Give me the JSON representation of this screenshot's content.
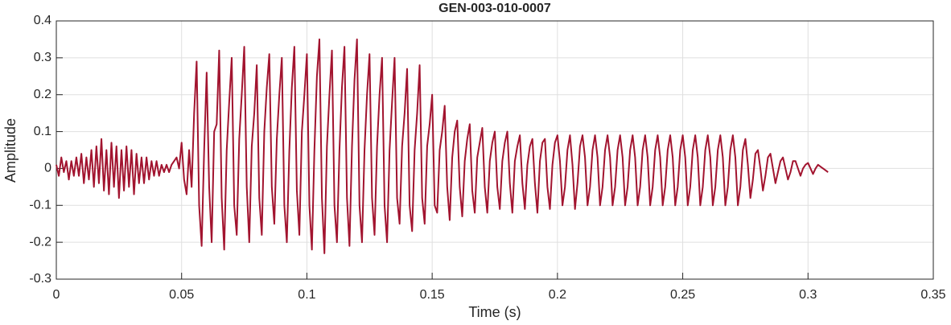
{
  "chart_data": {
    "type": "line",
    "title": "GEN-003-010-0007",
    "xlabel": "Time (s)",
    "ylabel": "Amplitude",
    "xlim": [
      0,
      0.35
    ],
    "ylim": [
      -0.3,
      0.4
    ],
    "xticks": [
      0,
      0.05,
      0.1,
      0.15,
      0.2,
      0.25,
      0.3,
      0.35
    ],
    "yticks": [
      -0.3,
      -0.2,
      -0.1,
      0,
      0.1,
      0.2,
      0.3,
      0.4
    ],
    "grid": true,
    "x": [
      0,
      0.001,
      0.002,
      0.003,
      0.004,
      0.005,
      0.006,
      0.007,
      0.008,
      0.009,
      0.01,
      0.011,
      0.012,
      0.013,
      0.014,
      0.015,
      0.016,
      0.017,
      0.018,
      0.019,
      0.02,
      0.021,
      0.022,
      0.023,
      0.024,
      0.025,
      0.026,
      0.027,
      0.028,
      0.029,
      0.03,
      0.031,
      0.032,
      0.033,
      0.034,
      0.035,
      0.036,
      0.037,
      0.038,
      0.039,
      0.04,
      0.041,
      0.042,
      0.043,
      0.044,
      0.045,
      0.046,
      0.047,
      0.048,
      0.049,
      0.05,
      0.051,
      0.052,
      0.053,
      0.054,
      0.055,
      0.056,
      0.057,
      0.058,
      0.059,
      0.06,
      0.061,
      0.062,
      0.063,
      0.064,
      0.065,
      0.066,
      0.067,
      0.068,
      0.069,
      0.07,
      0.071,
      0.072,
      0.073,
      0.074,
      0.075,
      0.076,
      0.077,
      0.078,
      0.079,
      0.08,
      0.081,
      0.082,
      0.083,
      0.084,
      0.085,
      0.086,
      0.087,
      0.088,
      0.089,
      0.09,
      0.091,
      0.092,
      0.093,
      0.094,
      0.095,
      0.096,
      0.097,
      0.098,
      0.099,
      0.1,
      0.101,
      0.102,
      0.103,
      0.104,
      0.105,
      0.106,
      0.107,
      0.108,
      0.109,
      0.11,
      0.111,
      0.112,
      0.113,
      0.114,
      0.115,
      0.116,
      0.117,
      0.118,
      0.119,
      0.12,
      0.121,
      0.122,
      0.123,
      0.124,
      0.125,
      0.126,
      0.127,
      0.128,
      0.129,
      0.13,
      0.131,
      0.132,
      0.133,
      0.134,
      0.135,
      0.136,
      0.137,
      0.138,
      0.139,
      0.14,
      0.141,
      0.142,
      0.143,
      0.144,
      0.145,
      0.146,
      0.147,
      0.148,
      0.149,
      0.15,
      0.151,
      0.152,
      0.153,
      0.154,
      0.155,
      0.156,
      0.157,
      0.158,
      0.159,
      0.16,
      0.161,
      0.162,
      0.163,
      0.164,
      0.165,
      0.166,
      0.167,
      0.168,
      0.169,
      0.17,
      0.171,
      0.172,
      0.173,
      0.174,
      0.175,
      0.176,
      0.177,
      0.178,
      0.179,
      0.18,
      0.181,
      0.182,
      0.183,
      0.184,
      0.185,
      0.186,
      0.187,
      0.188,
      0.189,
      0.19,
      0.191,
      0.192,
      0.193,
      0.194,
      0.195,
      0.196,
      0.197,
      0.198,
      0.199,
      0.2,
      0.201,
      0.202,
      0.203,
      0.204,
      0.205,
      0.206,
      0.207,
      0.208,
      0.209,
      0.21,
      0.211,
      0.212,
      0.213,
      0.214,
      0.215,
      0.216,
      0.217,
      0.218,
      0.219,
      0.22,
      0.221,
      0.222,
      0.223,
      0.224,
      0.225,
      0.226,
      0.227,
      0.228,
      0.229,
      0.23,
      0.231,
      0.232,
      0.233,
      0.234,
      0.235,
      0.236,
      0.237,
      0.238,
      0.239,
      0.24,
      0.241,
      0.242,
      0.243,
      0.244,
      0.245,
      0.246,
      0.247,
      0.248,
      0.249,
      0.25,
      0.251,
      0.252,
      0.253,
      0.254,
      0.255,
      0.256,
      0.257,
      0.258,
      0.259,
      0.26,
      0.261,
      0.262,
      0.263,
      0.264,
      0.265,
      0.266,
      0.267,
      0.268,
      0.269,
      0.27,
      0.271,
      0.272,
      0.273,
      0.274,
      0.275,
      0.276,
      0.277,
      0.278,
      0.279,
      0.28,
      0.281,
      0.282,
      0.283,
      0.284,
      0.285,
      0.286,
      0.287,
      0.288,
      0.289,
      0.29,
      0.291,
      0.292,
      0.293,
      0.294,
      0.295,
      0.296,
      0.297,
      0.298,
      0.299,
      0.3,
      0.301,
      0.302,
      0.303,
      0.304,
      0.305,
      0.306,
      0.307,
      0.308
    ],
    "series": [
      {
        "color": "#a2142f",
        "values": [
          0.01,
          -0.02,
          0.03,
          -0.01,
          0.02,
          -0.03,
          0.02,
          -0.02,
          0.03,
          -0.02,
          0.04,
          -0.04,
          0.03,
          -0.03,
          0.05,
          -0.05,
          0.06,
          -0.04,
          0.08,
          -0.06,
          0.05,
          -0.07,
          0.07,
          -0.05,
          0.06,
          -0.08,
          0.05,
          -0.06,
          0.06,
          -0.05,
          0.05,
          -0.07,
          0.04,
          -0.04,
          0.03,
          -0.04,
          0.03,
          -0.03,
          0.02,
          -0.02,
          0.02,
          -0.02,
          0.01,
          -0.01,
          0.01,
          -0.01,
          0.01,
          0.02,
          0.03,
          0,
          0.07,
          -0.03,
          -0.07,
          0.05,
          -0.05,
          0.15,
          0.29,
          -0.1,
          -0.21,
          0.05,
          0.26,
          -0.05,
          -0.2,
          0.1,
          0.12,
          0.32,
          -0.08,
          -0.22,
          0.05,
          0.18,
          0.3,
          -0.1,
          -0.18,
          0.08,
          0.2,
          0.33,
          -0.05,
          -0.2,
          0.06,
          0.15,
          0.28,
          -0.08,
          -0.18,
          0.1,
          0.22,
          0.31,
          -0.05,
          -0.15,
          0.08,
          0.2,
          0.3,
          -0.1,
          -0.2,
          0.05,
          0.22,
          0.33,
          -0.06,
          -0.18,
          0.1,
          0.2,
          0.31,
          -0.1,
          -0.22,
          0.05,
          0.25,
          0.35,
          -0.08,
          -0.23,
          0.06,
          0.2,
          0.32,
          -0.1,
          -0.2,
          0.05,
          0.22,
          0.33,
          -0.08,
          -0.21,
          0.06,
          0.24,
          0.35,
          -0.1,
          -0.2,
          0.05,
          0.2,
          0.31,
          -0.08,
          -0.18,
          0.06,
          0.2,
          0.3,
          -0.1,
          -0.2,
          0.05,
          0.18,
          0.3,
          -0.08,
          -0.15,
          0.06,
          0.15,
          0.27,
          -0.1,
          -0.17,
          0.05,
          0.15,
          0.28,
          -0.08,
          -0.15,
          0.06,
          0.12,
          0.2,
          -0.1,
          -0.12,
          0.05,
          0.1,
          0.17,
          -0.05,
          -0.14,
          0.03,
          0.1,
          0.13,
          -0.05,
          -0.13,
          0.02,
          0.08,
          0.12,
          -0.06,
          -0.12,
          0.03,
          0.07,
          0.11,
          -0.05,
          -0.12,
          0.02,
          0.07,
          0.1,
          -0.05,
          -0.11,
          0.02,
          0.07,
          0.1,
          -0.04,
          -0.12,
          0.02,
          0.06,
          0.09,
          -0.04,
          -0.11,
          0.01,
          0.06,
          0.08,
          -0.04,
          -0.12,
          0.02,
          0.07,
          0.08,
          -0.05,
          -0.11,
          0.01,
          0.07,
          0.09,
          0.02,
          -0.1,
          -0.05,
          0.05,
          0.09,
          0.01,
          -0.11,
          -0.04,
          0.06,
          0.09,
          0.03,
          -0.1,
          -0.05,
          0.05,
          0.09,
          0.03,
          -0.1,
          -0.05,
          0.05,
          0.09,
          0.03,
          -0.1,
          -0.05,
          0.05,
          0.09,
          0.03,
          -0.1,
          -0.05,
          0.05,
          0.09,
          0.03,
          -0.1,
          -0.05,
          0.05,
          0.09,
          0.03,
          -0.1,
          -0.05,
          0.05,
          0.09,
          0.03,
          -0.1,
          -0.05,
          0.05,
          0.09,
          0.03,
          -0.1,
          -0.05,
          0.05,
          0.09,
          0.03,
          -0.1,
          -0.05,
          0.05,
          0.09,
          0.03,
          -0.1,
          -0.05,
          0.05,
          0.09,
          0.03,
          -0.1,
          -0.05,
          0.05,
          0.09,
          0.03,
          -0.1,
          -0.05,
          0.05,
          0.09,
          0.03,
          -0.1,
          -0.05,
          0.05,
          0.08,
          0.01,
          -0.08,
          -0.03,
          0.04,
          0.05,
          0,
          -0.06,
          -0.02,
          0.03,
          0.04,
          0,
          -0.04,
          -0.01,
          0.02,
          0.03,
          0,
          -0.03,
          -0.01,
          0.02,
          0.02,
          0,
          -0.02,
          0,
          0.01,
          0.015,
          0,
          -0.015,
          0,
          0.01,
          0.005,
          0,
          -0.005,
          -0.01
        ]
      }
    ]
  }
}
